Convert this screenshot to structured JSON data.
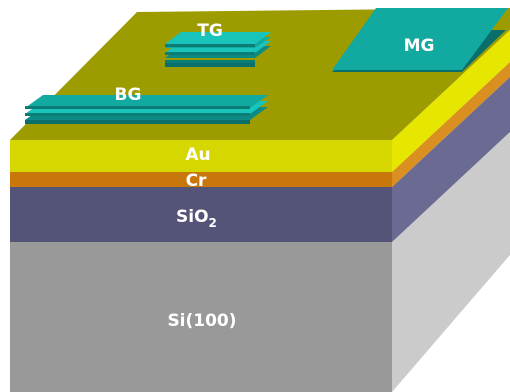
{
  "layers": {
    "au": {
      "label": "Au",
      "color": "#d6d600"
    },
    "cr": {
      "label": "Cr",
      "color": "#c8780a"
    },
    "sio2": {
      "label_main": "SiO",
      "label_sub": "2",
      "color": "#545478"
    },
    "si": {
      "label": "Si(100)",
      "color": "#999999"
    }
  },
  "top_surface_color": "#9c9c00",
  "flakes": {
    "tg": {
      "label": "TG",
      "color": "#12a9a0"
    },
    "bg": {
      "label": "BG",
      "color": "#12a9a0"
    },
    "mg": {
      "label": "MG",
      "color": "#12a9a0"
    }
  }
}
